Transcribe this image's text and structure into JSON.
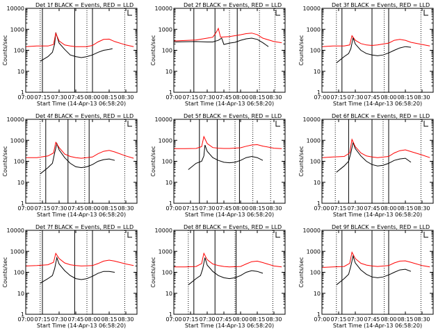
{
  "page": {
    "background": "#ffffff"
  },
  "colors": {
    "axes": "#000000",
    "events": "#000000",
    "lld": "#ff0000"
  },
  "shared": {
    "xlabel": "Start Time (14-Apr-13 06:58:20)",
    "ylabel": "Counts/sec",
    "x_tick_labels": [
      "07:00",
      "07:15",
      "07:30",
      "07:45",
      "08:00",
      "08:15",
      "08:30"
    ],
    "y_tick_labels": [
      "1",
      "10",
      "100",
      "1000",
      "10000"
    ]
  },
  "chart_data": [
    {
      "type": "line",
      "title": "Det 1f BLACK = Events, RED = LLD",
      "xlim": [
        "07:00",
        "08:40"
      ],
      "ylim": [
        1,
        10000
      ],
      "yscale": "log",
      "solid_vlines": [
        "07:15",
        "07:44",
        "08:00"
      ],
      "dotted_vlines": [
        "07:13",
        "07:55",
        "08:29"
      ],
      "series": [
        {
          "color": "#000000",
          "x": [
            "07:13",
            "07:20",
            "07:24",
            "07:26",
            "07:27",
            "07:30",
            "07:35",
            "07:40",
            "07:45",
            "07:50",
            "07:55",
            "08:00",
            "08:05",
            "08:10",
            "08:15",
            "08:18"
          ],
          "y": [
            30,
            50,
            80,
            200,
            700,
            220,
            110,
            60,
            50,
            45,
            50,
            60,
            80,
            100,
            110,
            120
          ]
        },
        {
          "color": "#ff0000",
          "x": [
            "07:00",
            "07:10",
            "07:20",
            "07:25",
            "07:27",
            "07:30",
            "07:35",
            "07:40",
            "07:45",
            "07:50",
            "07:55",
            "08:00",
            "08:05",
            "08:10",
            "08:15",
            "08:20",
            "08:30",
            "08:37"
          ],
          "y": [
            150,
            160,
            160,
            190,
            650,
            280,
            180,
            160,
            150,
            150,
            150,
            170,
            250,
            330,
            340,
            260,
            180,
            150
          ]
        }
      ]
    },
    {
      "type": "line",
      "title": "Det 2f BLACK = Events, RED = LLD",
      "xlim": [
        "07:00",
        "08:40"
      ],
      "ylim": [
        1,
        10000
      ],
      "yscale": "log",
      "solid_vlines": [
        "07:18",
        "07:37",
        "07:57"
      ],
      "dotted_vlines": [
        "07:50",
        "08:17",
        "08:31"
      ],
      "series": [
        {
          "color": "#000000",
          "x": [
            "07:00",
            "07:20",
            "07:30",
            "07:35",
            "07:40",
            "07:43",
            "07:45",
            "07:50",
            "07:55",
            "08:00",
            "08:05",
            "08:10",
            "08:15",
            "08:20",
            "08:25"
          ],
          "y": [
            250,
            260,
            250,
            250,
            300,
            380,
            190,
            220,
            240,
            300,
            350,
            380,
            330,
            230,
            150
          ]
        },
        {
          "color": "#ff0000",
          "x": [
            "07:00",
            "07:20",
            "07:30",
            "07:35",
            "07:38",
            "07:40",
            "07:42",
            "07:45",
            "07:50",
            "08:00",
            "08:05",
            "08:10",
            "08:15",
            "08:20",
            "08:30",
            "08:37"
          ],
          "y": [
            280,
            310,
            380,
            420,
            700,
            1100,
            420,
            430,
            450,
            550,
            620,
            660,
            560,
            380,
            260,
            230
          ]
        }
      ]
    },
    {
      "type": "line",
      "title": "Det 3f BLACK = Events, RED = LLD",
      "xlim": [
        "07:00",
        "08:40"
      ],
      "ylim": [
        1,
        10000
      ],
      "yscale": "log",
      "solid_vlines": [
        "07:18",
        "07:45",
        "08:00"
      ],
      "dotted_vlines": [
        "07:13",
        "07:56",
        "08:29"
      ],
      "series": [
        {
          "color": "#000000",
          "x": [
            "07:13",
            "07:20",
            "07:24",
            "07:26",
            "07:28",
            "07:30",
            "07:35",
            "07:40",
            "07:45",
            "07:50",
            "07:55",
            "08:00",
            "08:05",
            "08:10",
            "08:15",
            "08:20"
          ],
          "y": [
            25,
            50,
            70,
            120,
            400,
            200,
            100,
            70,
            60,
            55,
            60,
            75,
            100,
            130,
            150,
            140
          ]
        },
        {
          "color": "#ff0000",
          "x": [
            "07:00",
            "07:10",
            "07:20",
            "07:25",
            "07:27",
            "07:30",
            "07:35",
            "07:40",
            "07:45",
            "07:50",
            "08:00",
            "08:05",
            "08:10",
            "08:15",
            "08:20",
            "08:30",
            "08:37"
          ],
          "y": [
            150,
            160,
            160,
            180,
            500,
            300,
            210,
            180,
            170,
            180,
            220,
            300,
            330,
            300,
            240,
            190,
            160
          ]
        }
      ]
    },
    {
      "type": "line",
      "title": "Det 4f BLACK = Events, RED = LLD",
      "xlim": [
        "07:00",
        "08:40"
      ],
      "ylim": [
        1,
        10000
      ],
      "yscale": "log",
      "solid_vlines": [
        "07:18",
        "07:38",
        "07:57"
      ],
      "dotted_vlines": [
        "07:13",
        "07:53",
        "08:29"
      ],
      "series": [
        {
          "color": "#000000",
          "x": [
            "07:13",
            "07:20",
            "07:24",
            "07:26",
            "07:28",
            "07:30",
            "07:35",
            "07:40",
            "07:45",
            "07:50",
            "07:55",
            "08:00",
            "08:05",
            "08:10",
            "08:15",
            "08:20"
          ],
          "y": [
            25,
            50,
            80,
            250,
            700,
            350,
            150,
            80,
            55,
            50,
            55,
            70,
            100,
            120,
            130,
            110
          ]
        },
        {
          "color": "#ff0000",
          "x": [
            "07:00",
            "07:10",
            "07:20",
            "07:25",
            "07:27",
            "07:30",
            "07:35",
            "07:40",
            "07:45",
            "07:50",
            "08:00",
            "08:05",
            "08:10",
            "08:15",
            "08:20",
            "08:30",
            "08:37"
          ],
          "y": [
            150,
            150,
            180,
            250,
            800,
            450,
            220,
            170,
            150,
            140,
            160,
            230,
            300,
            330,
            280,
            180,
            140
          ]
        }
      ]
    },
    {
      "type": "line",
      "title": "Det 5f BLACK = Events, RED = LLD",
      "xlim": [
        "07:00",
        "08:40"
      ],
      "ylim": [
        1,
        10000
      ],
      "yscale": "log",
      "solid_vlines": [
        "07:23",
        "07:39",
        "07:59"
      ],
      "dotted_vlines": [
        "07:55",
        "08:11",
        "08:27"
      ],
      "series": [
        {
          "color": "#000000",
          "x": [
            "07:13",
            "07:20",
            "07:25",
            "07:27",
            "07:28",
            "07:30",
            "07:35",
            "07:40",
            "07:45",
            "07:50",
            "07:55",
            "08:00",
            "08:05",
            "08:10",
            "08:15",
            "08:20"
          ],
          "y": [
            40,
            80,
            100,
            180,
            600,
            300,
            150,
            110,
            90,
            85,
            90,
            110,
            150,
            170,
            150,
            110
          ]
        },
        {
          "color": "#ff0000",
          "x": [
            "07:00",
            "07:10",
            "07:20",
            "07:25",
            "07:27",
            "07:30",
            "07:35",
            "07:40",
            "07:45",
            "07:50",
            "08:00",
            "08:05",
            "08:10",
            "08:15",
            "08:20",
            "08:30",
            "08:37"
          ],
          "y": [
            400,
            400,
            410,
            500,
            1500,
            700,
            450,
            420,
            410,
            410,
            440,
            520,
            600,
            620,
            530,
            420,
            400
          ]
        }
      ]
    },
    {
      "type": "line",
      "title": "Det 6f BLACK = Events, RED = LLD",
      "xlim": [
        "07:00",
        "08:40"
      ],
      "ylim": [
        1,
        10000
      ],
      "yscale": "log",
      "solid_vlines": [
        "07:24",
        "07:45",
        "08:00"
      ],
      "dotted_vlines": [
        "07:12",
        "07:55",
        "08:29"
      ],
      "series": [
        {
          "color": "#000000",
          "x": [
            "07:13",
            "07:20",
            "07:24",
            "07:26",
            "07:28",
            "07:30",
            "07:35",
            "07:40",
            "07:45",
            "07:50",
            "07:55",
            "08:00",
            "08:05",
            "08:10",
            "08:15",
            "08:20"
          ],
          "y": [
            30,
            60,
            100,
            250,
            800,
            400,
            180,
            100,
            70,
            60,
            65,
            80,
            110,
            130,
            140,
            90
          ]
        },
        {
          "color": "#ff0000",
          "x": [
            "07:00",
            "07:10",
            "07:20",
            "07:25",
            "07:27",
            "07:30",
            "07:35",
            "07:40",
            "07:45",
            "07:50",
            "08:00",
            "08:05",
            "08:10",
            "08:15",
            "08:20",
            "08:30",
            "08:37"
          ],
          "y": [
            150,
            160,
            170,
            250,
            1100,
            500,
            250,
            180,
            160,
            150,
            170,
            250,
            320,
            350,
            290,
            200,
            150
          ]
        }
      ]
    },
    {
      "type": "line",
      "title": "Det 7f BLACK = Events, RED = LLD",
      "xlim": [
        "07:00",
        "08:40"
      ],
      "ylim": [
        1,
        10000
      ],
      "yscale": "log",
      "solid_vlines": [
        "07:15",
        "07:44",
        "08:00"
      ],
      "dotted_vlines": [
        "07:13",
        "07:55",
        "08:29"
      ],
      "series": [
        {
          "color": "#000000",
          "x": [
            "07:13",
            "07:20",
            "07:24",
            "07:26",
            "07:28",
            "07:30",
            "07:35",
            "07:40",
            "07:45",
            "07:50",
            "07:55",
            "08:00",
            "08:05",
            "08:10",
            "08:15",
            "08:20"
          ],
          "y": [
            30,
            50,
            70,
            150,
            500,
            250,
            120,
            70,
            50,
            45,
            50,
            65,
            90,
            110,
            110,
            100
          ]
        },
        {
          "color": "#ff0000",
          "x": [
            "07:00",
            "07:10",
            "07:20",
            "07:25",
            "07:27",
            "07:30",
            "07:35",
            "07:40",
            "07:45",
            "07:50",
            "08:00",
            "08:05",
            "08:10",
            "08:15",
            "08:20",
            "08:30",
            "08:37"
          ],
          "y": [
            200,
            210,
            230,
            300,
            800,
            450,
            280,
            230,
            210,
            200,
            210,
            260,
            340,
            380,
            340,
            250,
            210
          ]
        }
      ]
    },
    {
      "type": "line",
      "title": "Det 8f BLACK = Events, RED = LLD",
      "xlim": [
        "07:00",
        "08:40"
      ],
      "ylim": [
        1,
        10000
      ],
      "yscale": "log",
      "solid_vlines": [
        "07:18",
        "07:37",
        "07:56"
      ],
      "dotted_vlines": [
        "07:13",
        "07:55",
        "08:29"
      ],
      "series": [
        {
          "color": "#000000",
          "x": [
            "07:13",
            "07:20",
            "07:24",
            "07:26",
            "07:28",
            "07:30",
            "07:35",
            "07:40",
            "07:45",
            "07:50",
            "07:55",
            "08:00",
            "08:05",
            "08:10",
            "08:15",
            "08:20"
          ],
          "y": [
            25,
            50,
            70,
            150,
            500,
            220,
            110,
            70,
            55,
            50,
            55,
            70,
            100,
            120,
            110,
            90
          ]
        },
        {
          "color": "#ff0000",
          "x": [
            "07:00",
            "07:10",
            "07:20",
            "07:25",
            "07:27",
            "07:30",
            "07:35",
            "07:40",
            "07:45",
            "07:50",
            "08:00",
            "08:05",
            "08:10",
            "08:15",
            "08:20",
            "08:30",
            "08:37"
          ],
          "y": [
            180,
            180,
            190,
            260,
            800,
            400,
            250,
            210,
            190,
            180,
            190,
            250,
            320,
            340,
            290,
            200,
            180
          ]
        }
      ]
    },
    {
      "type": "line",
      "title": "Det 9f BLACK = Events, RED = LLD",
      "xlim": [
        "07:00",
        "08:40"
      ],
      "ylim": [
        1,
        10000
      ],
      "yscale": "log",
      "solid_vlines": [
        "07:18",
        "07:45",
        "08:00"
      ],
      "dotted_vlines": [
        "07:13",
        "07:56",
        "08:29"
      ],
      "series": [
        {
          "color": "#000000",
          "x": [
            "07:13",
            "07:20",
            "07:24",
            "07:26",
            "07:28",
            "07:30",
            "07:35",
            "07:40",
            "07:45",
            "07:50",
            "07:55",
            "08:00",
            "08:05",
            "08:10",
            "08:15",
            "08:20"
          ],
          "y": [
            25,
            50,
            80,
            200,
            600,
            280,
            130,
            80,
            60,
            55,
            60,
            75,
            100,
            130,
            140,
            110
          ]
        },
        {
          "color": "#ff0000",
          "x": [
            "07:00",
            "07:10",
            "07:20",
            "07:25",
            "07:27",
            "07:30",
            "07:35",
            "07:40",
            "07:45",
            "07:50",
            "08:00",
            "08:05",
            "08:10",
            "08:15",
            "08:20",
            "08:30",
            "08:37"
          ],
          "y": [
            170,
            180,
            190,
            270,
            900,
            450,
            270,
            220,
            200,
            190,
            210,
            280,
            340,
            350,
            300,
            210,
            180
          ]
        }
      ]
    }
  ]
}
